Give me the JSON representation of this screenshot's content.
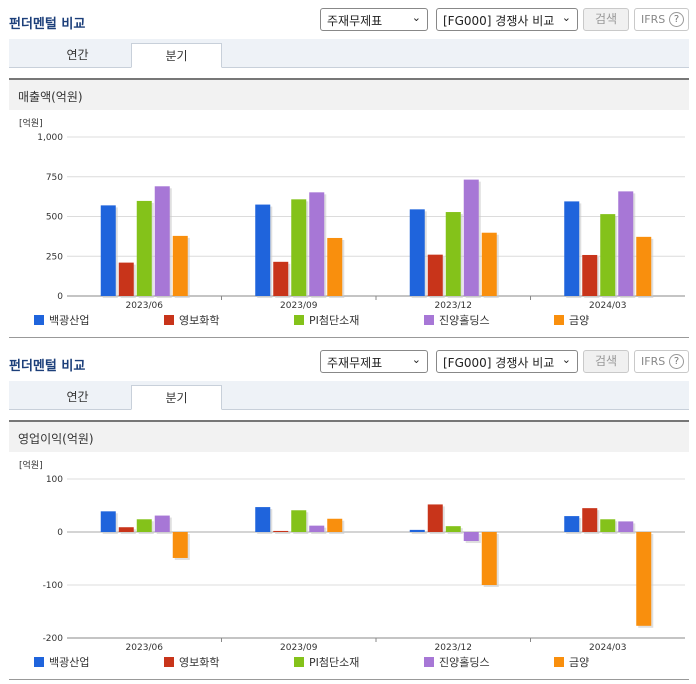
{
  "sections": [
    {
      "title": "펀더멘털 비교",
      "select1": "주재무제표",
      "select2": "[FG000] 경쟁사 비교",
      "search_label": "검색",
      "ifrs_label": "IFRS",
      "help_label": "?",
      "tabs": [
        {
          "label": "연간"
        },
        {
          "label": "분기"
        }
      ],
      "metric_label": "매출액(억원)"
    },
    {
      "title": "펀더멘털 비교",
      "select1": "주재무제표",
      "select2": "[FG000] 경쟁사 비교",
      "search_label": "검색",
      "ifrs_label": "IFRS",
      "help_label": "?",
      "tabs": [
        {
          "label": "연간"
        },
        {
          "label": "분기"
        }
      ],
      "metric_label": "영업이익(억원)"
    }
  ],
  "chart_data": [
    {
      "type": "bar",
      "unit_label": "[억원]",
      "categories": [
        "2023/06",
        "2023/09",
        "2023/12",
        "2024/03"
      ],
      "ylim": [
        0,
        1000
      ],
      "yticks": [
        "1,000",
        "750",
        "500",
        "250",
        "0"
      ],
      "series": [
        {
          "name": "백광산업",
          "color": "#1f64dc",
          "values": [
            570,
            575,
            545,
            595
          ]
        },
        {
          "name": "영보화학",
          "color": "#c8341a",
          "values": [
            210,
            215,
            260,
            258
          ]
        },
        {
          "name": "PI첨단소재",
          "color": "#84c21a",
          "values": [
            598,
            608,
            528,
            515
          ]
        },
        {
          "name": "진양홀딩스",
          "color": "#a777d6",
          "values": [
            690,
            652,
            732,
            658
          ]
        },
        {
          "name": "금양",
          "color": "#f98f0d",
          "values": [
            378,
            365,
            398,
            372
          ]
        }
      ]
    },
    {
      "type": "bar",
      "unit_label": "[억원]",
      "categories": [
        "2023/06",
        "2023/09",
        "2023/12",
        "2024/03"
      ],
      "ylim": [
        -200,
        100
      ],
      "yticks": [
        "100",
        "0",
        "-100",
        "-200"
      ],
      "series": [
        {
          "name": "백광산업",
          "color": "#1f64dc",
          "values": [
            39,
            47,
            4,
            30
          ]
        },
        {
          "name": "영보화학",
          "color": "#c8341a",
          "values": [
            9,
            2,
            52,
            45
          ]
        },
        {
          "name": "PI첨단소재",
          "color": "#84c21a",
          "values": [
            24,
            41,
            11,
            24
          ]
        },
        {
          "name": "진양홀딩스",
          "color": "#a777d6",
          "values": [
            31,
            12,
            -17,
            20
          ]
        },
        {
          "name": "금양",
          "color": "#f98f0d",
          "values": [
            -49,
            25,
            -100,
            -177
          ]
        }
      ]
    }
  ]
}
